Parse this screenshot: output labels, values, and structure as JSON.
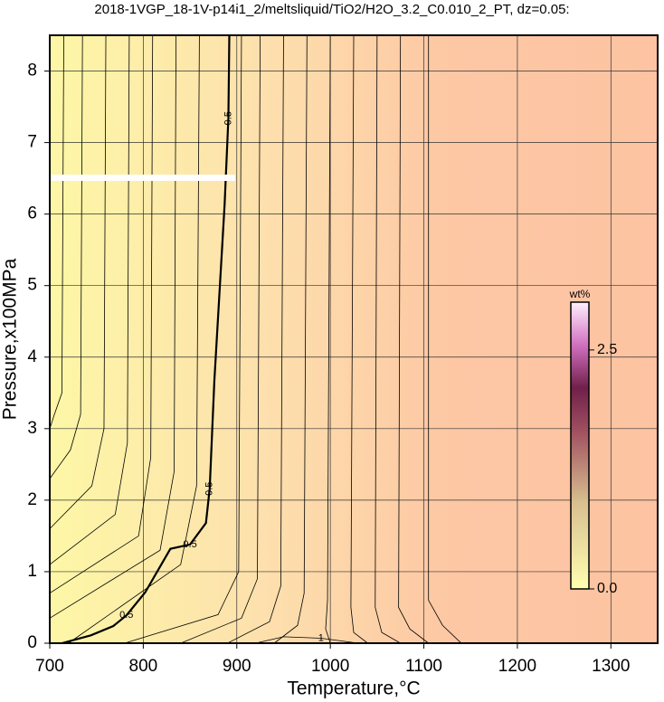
{
  "chart_data": {
    "type": "contour",
    "title": "2018-1VGP_18-1V-p14i1_2/meltsliquid/TiO2/H2O_3.2_C0.010_2_PT, dz=0.05:",
    "xlabel": "Temperature,°C",
    "ylabel": "Pressure,x100MPa",
    "xlim": [
      700,
      1350
    ],
    "ylim": [
      0,
      8.5
    ],
    "xticks": [
      700,
      800,
      900,
      1000,
      1100,
      1200,
      1300
    ],
    "yticks": [
      0,
      1,
      2,
      3,
      4,
      5,
      6,
      7,
      8
    ],
    "grid": true,
    "colorbar": {
      "label": "wt%",
      "clim": [
        0,
        3
      ],
      "ticks": [
        {
          "value": 0,
          "label": "0.0"
        },
        {
          "value": 2.5,
          "label": "2.5"
        }
      ]
    },
    "contours": [
      {
        "level": 0.15,
        "x": [
          715,
          713,
          705,
          700
        ],
        "y": [
          8.5,
          3.5,
          3.2,
          3.0
        ]
      },
      {
        "level": 0.2,
        "x": [
          735,
          733,
          722,
          700
        ],
        "y": [
          8.5,
          3.2,
          2.7,
          2.3
        ]
      },
      {
        "level": 0.25,
        "x": [
          760,
          758,
          745,
          700
        ],
        "y": [
          8.5,
          3.0,
          2.2,
          1.6
        ]
      },
      {
        "level": 0.3,
        "x": [
          785,
          783,
          770,
          700
        ],
        "y": [
          8.5,
          2.8,
          1.8,
          1.1
        ]
      },
      {
        "level": 0.35,
        "x": [
          810,
          808,
          795,
          700
        ],
        "y": [
          8.5,
          2.6,
          1.5,
          0.7
        ]
      },
      {
        "level": 0.4,
        "x": [
          835,
          833,
          818,
          700
        ],
        "y": [
          8.5,
          2.4,
          1.3,
          0.35
        ]
      },
      {
        "level": 0.45,
        "x": [
          860,
          857,
          840,
          720
        ],
        "y": [
          8.5,
          2.2,
          1.1,
          0
        ]
      },
      {
        "level": 0.5,
        "x": [
          713,
          744,
          768,
          782,
          802,
          829,
          850,
          867,
          871,
          876,
          887,
          891,
          892
        ],
        "y": [
          0,
          0.11,
          0.24,
          0.39,
          0.71,
          1.32,
          1.38,
          1.68,
          2.16,
          3.67,
          6.14,
          7.34,
          8.5
        ],
        "labels": [
          "0.5",
          "0.5",
          "0.5",
          "0.5"
        ]
      },
      {
        "level": 0.55,
        "x": [
          905,
          902,
          880,
          780
        ],
        "y": [
          8.5,
          1.0,
          0.4,
          0
        ]
      },
      {
        "level": 0.6,
        "x": [
          925,
          922,
          905,
          840
        ],
        "y": [
          8.5,
          0.9,
          0.35,
          0
        ]
      },
      {
        "level": 0.65,
        "x": [
          950,
          947,
          935,
          890
        ],
        "y": [
          8.5,
          0.8,
          0.3,
          0
        ]
      },
      {
        "level": 0.7,
        "x": [
          975,
          972,
          965,
          940
        ],
        "y": [
          8.5,
          0.7,
          0.25,
          0
        ]
      },
      {
        "level": 0.75,
        "x": [
          1000,
          997,
          995,
          1000
        ],
        "y": [
          8.5,
          0.6,
          0.2,
          0
        ]
      },
      {
        "level": 0.8,
        "x": [
          1025,
          1022,
          1025,
          1040
        ],
        "y": [
          8.5,
          0.5,
          0.15,
          0
        ]
      },
      {
        "level": 0.85,
        "x": [
          1050,
          1048,
          1055,
          1075
        ],
        "y": [
          8.5,
          0.5,
          0.15,
          0
        ]
      },
      {
        "level": 0.9,
        "x": [
          1075,
          1073,
          1085,
          1105
        ],
        "y": [
          8.5,
          0.5,
          0.2,
          0
        ]
      },
      {
        "level": 0.95,
        "x": [
          1105,
          1105,
          1120,
          1140
        ],
        "y": [
          8.5,
          0.6,
          0.25,
          0
        ]
      },
      {
        "level": 1,
        "x": [
          920,
          950,
          990,
          1030
        ],
        "y": [
          0,
          0.09,
          0.07,
          0
        ],
        "labels": [
          "1"
        ]
      }
    ]
  }
}
